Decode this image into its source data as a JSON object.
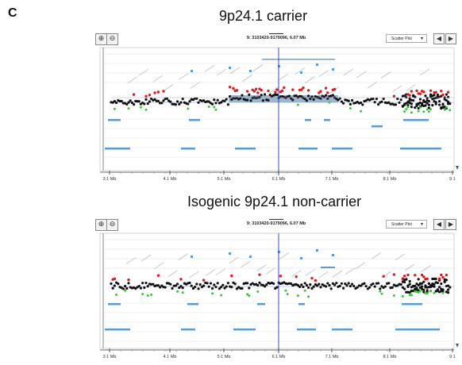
{
  "figure": {
    "panel_letter": "C"
  },
  "panels": [
    {
      "title": "9p24.1 carrier",
      "coordinate": "9: 3103420-9179096, 6.07 Mb",
      "view_mode": "Scatter Plot",
      "zoom_in_icon": "zoom-in-icon",
      "zoom_out_icon": "zoom-out-icon",
      "nav_left": "◀",
      "nav_right": "▶",
      "axis_ticks": [
        "3.1 Mb",
        "4.1 Mb",
        "5.1 Mb",
        "6.1 Mb",
        "7.1 Mb",
        "8.1 Mb",
        "9.1"
      ]
    },
    {
      "title": "Isogenic 9p24.1 non-carrier",
      "coordinate": "9: 3103420-9179096, 6.07 Mb",
      "view_mode": "Scatter Plot",
      "zoom_in_icon": "zoom-in-icon",
      "zoom_out_icon": "zoom-out-icon",
      "nav_left": "◀",
      "nav_right": "▶",
      "axis_ticks": [
        "3.1 Mb",
        "4.1 Mb",
        "5.1 Mb",
        "6.1 Mb",
        "7.1 Mb",
        "8.1 Mb",
        "9.1"
      ]
    }
  ],
  "colors": {
    "black_points": "#111111",
    "red_points": "#e31a1c",
    "green_points": "#33cc33",
    "segment_fill": "#7f9dbf",
    "gene_bar": "#5b9bd5",
    "cursor_line": "#2233dd",
    "baseline_line": "#6fa0d0"
  }
}
